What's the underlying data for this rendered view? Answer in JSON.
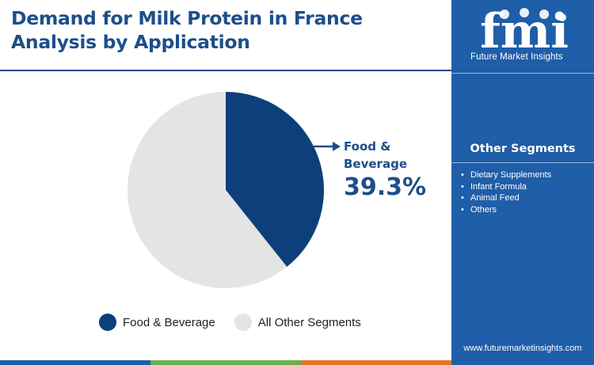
{
  "header": {
    "title_line1": "Demand for Milk Protein in France",
    "title_line2": "Analysis by Application"
  },
  "chart_data": {
    "type": "pie",
    "categories": [
      "Food & Beverage",
      "All Other Segments"
    ],
    "values": [
      39.3,
      60.7
    ],
    "colors": [
      "#0d3f7a",
      "#e4e4e4"
    ],
    "callout": {
      "label_line1": "Food &",
      "label_line2": "Beverage",
      "value": "39.3%"
    },
    "legend": {
      "position": "bottom",
      "items": [
        "Food & Beverage",
        "All Other Segments"
      ]
    }
  },
  "sidebar": {
    "logo_text": "fmi",
    "logo_tagline": "Future Market Insights",
    "segments_title": "Other Segments",
    "segments": [
      "Dietary Supplements",
      "Infant Formula",
      "Animal Feed",
      "Others"
    ],
    "website": "www.futuremarketinsights.com"
  },
  "colors": {
    "brand_blue": "#1f5ea8",
    "title_blue": "#1d4e89",
    "bottom_bar": [
      "#1f5ea8",
      "#6ab04c",
      "#e8742b",
      "#1f5ea8"
    ]
  }
}
